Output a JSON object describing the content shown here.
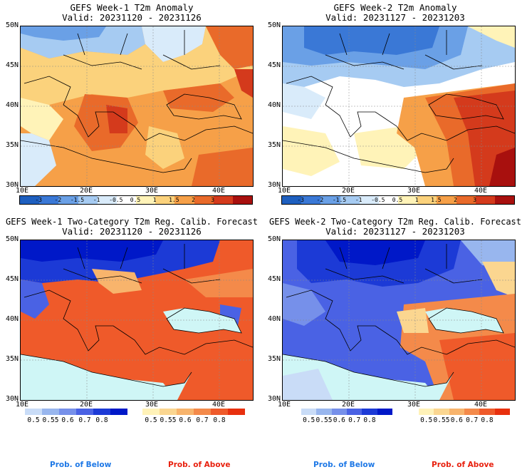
{
  "panels": [
    {
      "id": "p1",
      "title1": "GEFS Week-1 T2m Anomaly",
      "title2": "Valid: 20231120 - 20231126"
    },
    {
      "id": "p2",
      "title1": "GEFS Week-2 T2m Anomaly",
      "title2": "Valid: 20231127 - 20231203"
    },
    {
      "id": "p3",
      "title1": "GEFS Week-1 Two-Category T2m Reg. Calib. Forecast",
      "title2": "Valid: 20231120 - 20231126"
    },
    {
      "id": "p4",
      "title1": "GEFS Week-2 Two-Category T2m Reg. Calib. Forecast",
      "title2": "Valid: 20231127 - 20231203"
    }
  ],
  "lat_labels": [
    "50N",
    "45N",
    "40N",
    "35N",
    "30N"
  ],
  "lon_labels": [
    "10E",
    "20E",
    "30E",
    "40E"
  ],
  "anomaly_colorbar": {
    "labels": [
      "-3",
      "-2",
      "-1.5",
      "-1",
      "-0.5",
      "0.5",
      "1",
      "1.5",
      "2",
      "3"
    ],
    "colors": [
      "#1e5fbf",
      "#3a78d6",
      "#6aa0e6",
      "#a6cbf2",
      "#d9ebfa",
      "#ffffff",
      "#fff3b8",
      "#fbd27c",
      "#f6a048",
      "#e96a2a",
      "#d43a1c",
      "#a8100e"
    ]
  },
  "prob_below": {
    "labels": [
      "0.5",
      "0.55",
      "0.6",
      "0.7",
      "0.8"
    ],
    "colors": [
      "#c9dcf7",
      "#98b6ee",
      "#7690ea",
      "#4a62e4",
      "#1c3ad6",
      "#0018c8"
    ],
    "caption": "Prob. of Below",
    "caption_color": "#1e78e6"
  },
  "prob_above": {
    "labels": [
      "0.5",
      "0.55",
      "0.6",
      "0.7",
      "0.8"
    ],
    "colors": [
      "#fff2b8",
      "#fbd690",
      "#f8b46c",
      "#f48a4a",
      "#ef5a2a",
      "#e8300e"
    ],
    "caption": "Prob. of Above",
    "caption_color": "#e8200e"
  },
  "map_colors": {
    "land_default": "#ffffff",
    "sea": "#cff6f6",
    "coast": "#000000"
  }
}
